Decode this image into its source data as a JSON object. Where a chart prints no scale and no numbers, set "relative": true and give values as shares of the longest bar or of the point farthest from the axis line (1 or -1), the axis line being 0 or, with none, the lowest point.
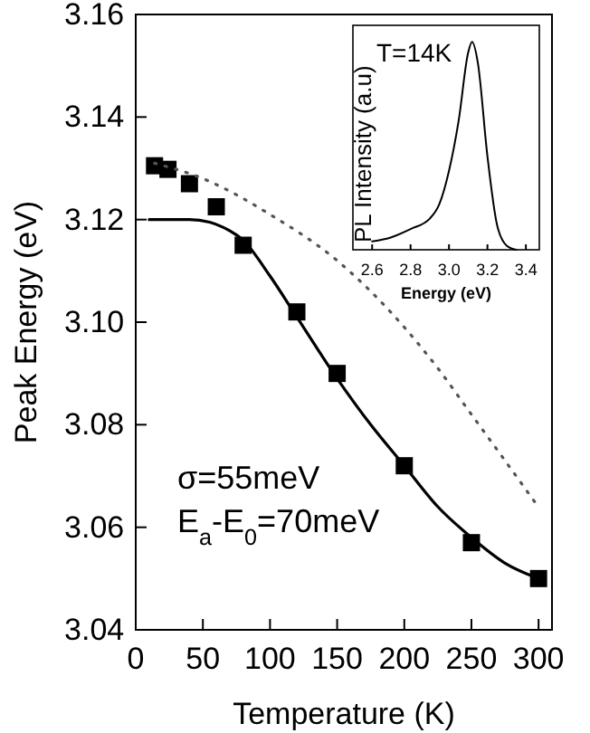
{
  "chart_data": [
    {
      "type": "scatter",
      "xlabel": "Temperature (K)",
      "ylabel": "Peak Energy (eV)",
      "xlim": [
        0,
        310
      ],
      "ylim": [
        3.04,
        3.16
      ],
      "xticks": [
        0,
        50,
        100,
        150,
        200,
        250,
        300
      ],
      "yticks": [
        {
          "value": 3.04,
          "label": "3.04"
        },
        {
          "value": 3.06,
          "label": "3.06"
        },
        {
          "value": 3.08,
          "label": "3.08"
        },
        {
          "value": 3.1,
          "label": "3.10"
        },
        {
          "value": 3.12,
          "label": "3.12"
        },
        {
          "value": 3.14,
          "label": "3.14"
        },
        {
          "value": 3.16,
          "label": "3.16"
        }
      ],
      "grid": false,
      "annotations": [
        "σ=55meV",
        "E$_{a}$-E$_{0}$=70meV"
      ],
      "series": [
        {
          "marker": "square",
          "color": "#000000",
          "x": [
            14,
            24,
            40,
            60,
            80,
            120,
            150,
            200,
            250,
            300
          ],
          "values": [
            3.1305,
            3.1298,
            3.127,
            3.1225,
            3.115,
            3.102,
            3.09,
            3.072,
            3.057,
            3.05
          ]
        },
        {
          "type": "line",
          "marker": "none",
          "line_style": "solid",
          "color": "#000000",
          "x": [
            10,
            40,
            55,
            65,
            80,
            100,
            120,
            150,
            175,
            200,
            225,
            250,
            275,
            300
          ],
          "values": [
            3.12,
            3.12,
            3.1195,
            3.1185,
            3.116,
            3.109,
            3.101,
            3.089,
            3.08,
            3.072,
            3.064,
            3.058,
            3.053,
            3.05
          ]
        },
        {
          "type": "line",
          "marker": "none",
          "line_style": "dotted",
          "color": "#555555",
          "x": [
            14,
            50,
            100,
            150,
            200,
            225,
            250,
            275,
            297
          ],
          "values": [
            3.131,
            3.128,
            3.121,
            3.112,
            3.099,
            3.091,
            3.082,
            3.073,
            3.065
          ]
        }
      ]
    },
    {
      "type": "line",
      "xlabel": "Energy (eV)",
      "ylabel": "PL Intensity (a.u)",
      "relative": true,
      "xlim": [
        2.5,
        3.47
      ],
      "xticks": [
        {
          "value": 2.6,
          "label": "2.6"
        },
        {
          "value": 2.8,
          "label": "2.8"
        },
        {
          "value": 3.0,
          "label": "3.0"
        },
        {
          "value": 3.2,
          "label": "3.2"
        },
        {
          "value": 3.4,
          "label": "3.4"
        }
      ],
      "tick_labels": "x",
      "grid": false,
      "annotations": [
        "T=14K"
      ],
      "series": [
        {
          "line_style": "solid",
          "marker": "none",
          "color": "#000000",
          "x": [
            2.6,
            2.7,
            2.8,
            2.9,
            2.95,
            3.0,
            3.05,
            3.1,
            3.12,
            3.15,
            3.2,
            3.25,
            3.3,
            3.35
          ],
          "values": [
            0.04,
            0.06,
            0.1,
            0.15,
            0.22,
            0.38,
            0.62,
            0.95,
            1,
            0.9,
            0.45,
            0.12,
            0.02,
            0
          ]
        }
      ]
    }
  ]
}
